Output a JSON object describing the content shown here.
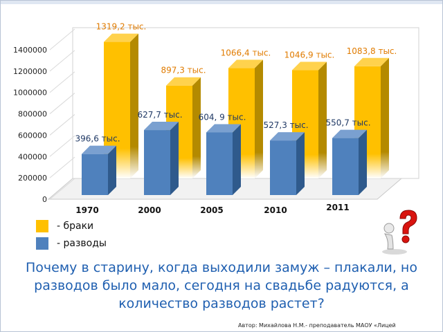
{
  "chart_data": {
    "type": "bar",
    "categories": [
      "1970",
      "2000",
      "2005",
      "2010",
      "2011"
    ],
    "series": [
      {
        "name": "- браки",
        "values": [
          1319.2,
          897.3,
          1066.4,
          1046.9,
          1083.8
        ],
        "labels": [
          "1319,2 тыс.",
          "897,3 тыс.",
          "1066,4 тыс.",
          "1046,9 тыс.",
          "1083,8 тыс."
        ]
      },
      {
        "name": "- разводы",
        "values": [
          396.6,
          627.7,
          604.9,
          527.3,
          550.7
        ],
        "labels": [
          "396,6 тыс.",
          "627,7 тыс.",
          "604, 9 тыс.",
          "527,3 тыс.",
          "550,7 тыс."
        ]
      }
    ],
    "yticks": [
      "0",
      "200000",
      "400000",
      "600000",
      "800000",
      "1000000",
      "1200000",
      "1400000"
    ],
    "ylim": [
      0,
      1400000
    ],
    "colors": {
      "marriages": "#ffc000",
      "divorces": "#4f81bd",
      "label_marriages": "#e07b00",
      "label_divorces": "#1f3864"
    }
  },
  "legend": {
    "marriages_label": "- браки",
    "divorces_label": "- разводы"
  },
  "question": "Почему в старину, когда выходили замуж – плакали, но разводов было мало, сегодня на свадьбе радуются, а количество разводов растет?",
  "author": "Автор: Михайлова Н.М.- преподаватель МАОУ «Лицей"
}
